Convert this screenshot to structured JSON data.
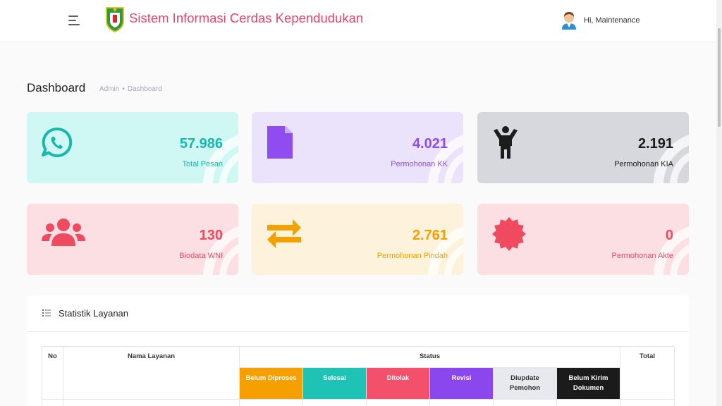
{
  "header": {
    "title": "Sistem Informasi Cerdas Kependudukan",
    "user_greeting": "Hi, Maintenance"
  },
  "page": {
    "title": "Dashboard",
    "breadcrumb": [
      "Admin",
      "Dashboard"
    ]
  },
  "cards": [
    {
      "value": "57.986",
      "label": "Total Pesan",
      "icon": "whatsapp-icon",
      "bg": "#cff7f3",
      "color": "#1ab8aa"
    },
    {
      "value": "4.021",
      "label": "Permohonan KK",
      "icon": "document-icon",
      "bg": "#ebe3fc",
      "color": "#8f4cf0"
    },
    {
      "value": "2.191",
      "label": "Permohonan KIA",
      "icon": "child-icon",
      "bg": "#d7d7de",
      "color": "#1c1c1c"
    },
    {
      "value": "130",
      "label": "Biodata WNI",
      "icon": "users-icon",
      "bg": "#fcdfe3",
      "color": "#ef4a5f"
    },
    {
      "value": "2.761",
      "label": "Permohonan Pindah",
      "icon": "exchange-icon",
      "bg": "#fdf2dc",
      "color": "#f2a100"
    },
    {
      "value": "0",
      "label": "Permohonan Akte",
      "icon": "certificate-icon",
      "bg": "#fcdfe3",
      "color": "#ef4a5f"
    }
  ],
  "stats": {
    "title": "Statistik Layanan",
    "columns": {
      "no": "No",
      "nama": "Nama Layanan",
      "status": "Status",
      "total": "Total"
    },
    "status_columns": [
      {
        "label": "Belum Diproses",
        "bg": "#f6a000",
        "fg": "#ffffff"
      },
      {
        "label": "Selesai",
        "bg": "#1ec3b5",
        "fg": "#ffffff"
      },
      {
        "label": "Ditolak",
        "bg": "#f2506b",
        "fg": "#ffffff"
      },
      {
        "label": "Revisi",
        "bg": "#8a47ee",
        "fg": "#ffffff"
      },
      {
        "label": "Diupdate Pemohon",
        "bg": "#e7e9ee",
        "fg": "#333333"
      },
      {
        "label": "Belum Kirim Dokumen",
        "bg": "#1b1b1b",
        "fg": "#ffffff"
      }
    ]
  }
}
